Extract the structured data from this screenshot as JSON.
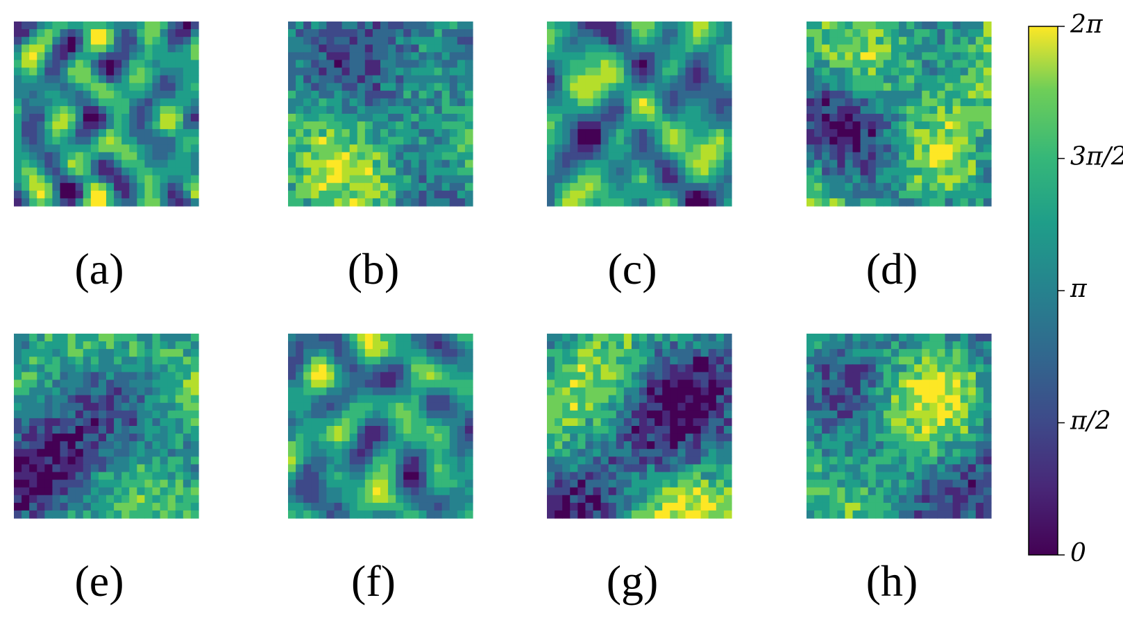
{
  "panels": [
    {
      "label": "(a)"
    },
    {
      "label": "(b)"
    },
    {
      "label": "(c)"
    },
    {
      "label": "(d)"
    },
    {
      "label": "(e)"
    },
    {
      "label": "(f)"
    },
    {
      "label": "(g)"
    },
    {
      "label": "(h)"
    }
  ],
  "colorbar": {
    "ylim": [
      0,
      6.2832
    ],
    "yticks": [
      0,
      {
        "value": 1.5708,
        "label": "π/2"
      },
      {
        "value": 3.1416,
        "label": "π"
      },
      {
        "value": 4.7124,
        "label": "3π/2"
      },
      {
        "value": 6.2832,
        "label": "2π"
      }
    ]
  }
}
